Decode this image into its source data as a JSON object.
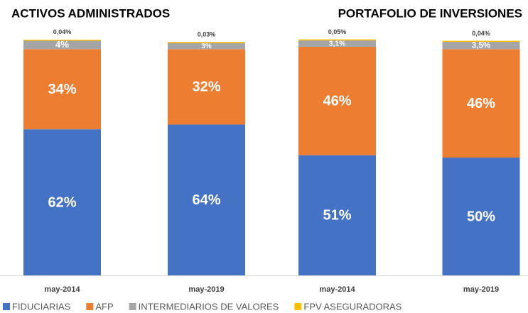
{
  "chart_data": [
    {
      "type": "bar",
      "stacked": true,
      "title": "ACTIVOS ADMINISTRADOS",
      "categories": [
        "may-2014",
        "may-2019"
      ],
      "ylim": [
        0,
        100
      ],
      "series": [
        {
          "name": "FIDUCIARIAS",
          "color": "#4472c4",
          "values": [
            62,
            64
          ],
          "value_labels": [
            "62%",
            "64%"
          ]
        },
        {
          "name": "AFP",
          "color": "#ed7d31",
          "values": [
            34,
            32
          ],
          "value_labels": [
            "34%",
            "32%"
          ]
        },
        {
          "name": "INTERMEDIARIOS DE VALORES",
          "color": "#a5a5a5",
          "values": [
            4,
            3
          ],
          "value_labels": [
            "4%",
            "3%"
          ]
        },
        {
          "name": "FPV ASEGURADORAS",
          "color": "#ffc000",
          "values": [
            0.04,
            0.03
          ],
          "value_labels": [
            "0,04%",
            "0,03%"
          ]
        }
      ]
    },
    {
      "type": "bar",
      "stacked": true,
      "title": "PORTAFOLIO DE INVERSIONES",
      "categories": [
        "may-2014",
        "may-2019"
      ],
      "ylim": [
        0,
        100
      ],
      "series": [
        {
          "color": "#4472c4",
          "values": [
            51,
            50
          ],
          "value_labels": [
            "51%",
            "50%"
          ]
        },
        {
          "color": "#ed7d31",
          "values": [
            46,
            46
          ],
          "value_labels": [
            "46%",
            "46%"
          ]
        },
        {
          "color": "#a5a5a5",
          "values": [
            3.1,
            3.5
          ],
          "value_labels": [
            "3,1%",
            "3,5%"
          ]
        },
        {
          "color": "#ffc000",
          "values": [
            0.05,
            0.04
          ],
          "value_labels": [
            "0,05%",
            "0,04%"
          ]
        }
      ]
    }
  ]
}
